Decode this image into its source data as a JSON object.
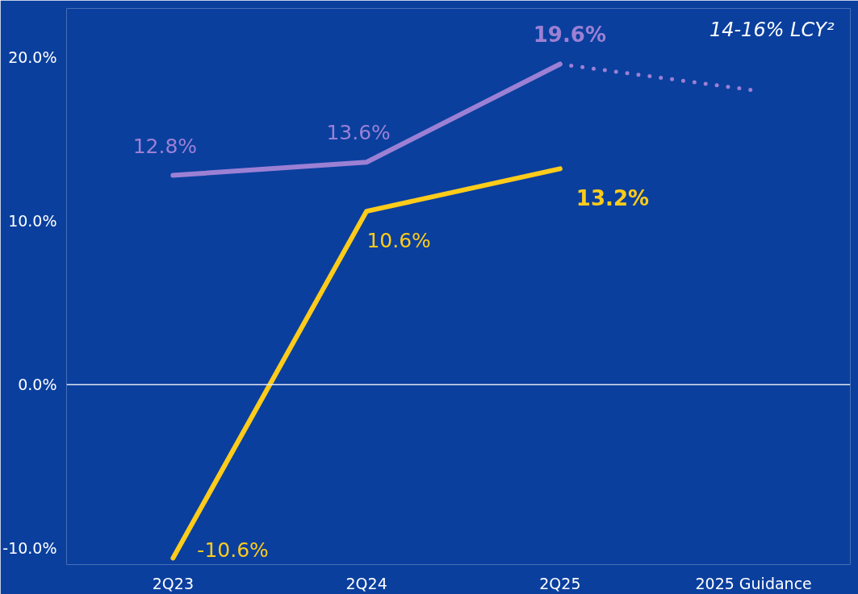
{
  "chart_data": {
    "type": "line",
    "categories": [
      "2Q23",
      "2Q24",
      "2Q25",
      "2025 Guidance"
    ],
    "ylim": [
      -11,
      23
    ],
    "yticks": [
      {
        "value": -10,
        "label": "-10.0%"
      },
      {
        "value": 0,
        "label": "0.0%"
      },
      {
        "value": 10,
        "label": "10.0%"
      },
      {
        "value": 20,
        "label": "20.0%"
      }
    ],
    "grid": false,
    "marker": "none",
    "series": [
      {
        "color": "#9c80d4",
        "values": [
          12.8,
          13.6,
          19.6,
          null
        ],
        "value_labels": [
          "12.8%",
          "13.6%",
          "19.6%",
          null
        ],
        "line_style": "solid"
      },
      {
        "color": "#9c80d4",
        "values": [
          null,
          null,
          19.6,
          18.0
        ],
        "line_style": "dotted"
      },
      {
        "color": "#ffcc1a",
        "values": [
          -10.6,
          10.6,
          13.2,
          null
        ],
        "value_labels": [
          "-10.6%",
          "10.6%",
          "13.2%",
          null
        ],
        "line_style": "solid"
      }
    ],
    "ref_lines": [
      {
        "axis": "y",
        "value": 0,
        "color": "#e0e6f0"
      }
    ],
    "annotations": [
      "14-16% LCY²"
    ]
  }
}
